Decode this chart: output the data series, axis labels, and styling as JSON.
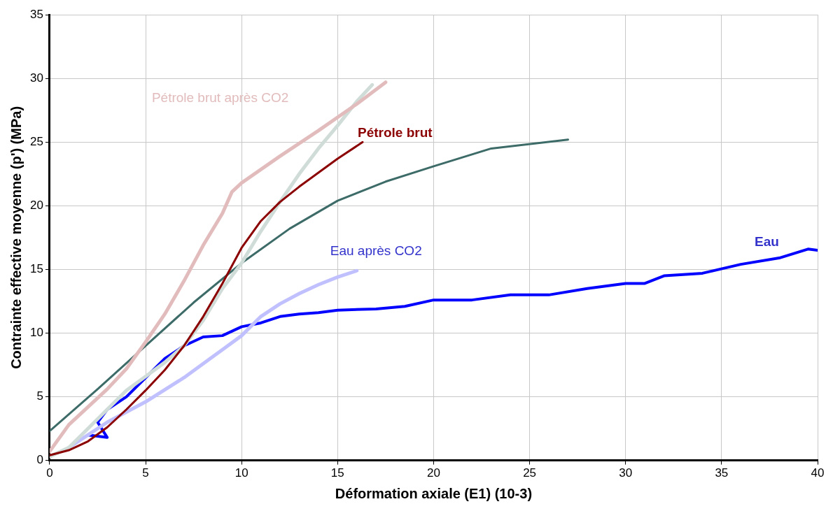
{
  "chart_data": {
    "type": "line",
    "xlabel": "Déformation axiale (E1) (10-3)",
    "ylabel": "Contrainte effective moyenne (p') (MPa)",
    "xlim": [
      0,
      40
    ],
    "xticks": [
      0,
      5,
      10,
      15,
      20,
      25,
      30,
      35,
      40
    ],
    "ylim": [
      0,
      35
    ],
    "yticks": [
      0,
      5,
      10,
      15,
      20,
      25,
      30,
      35
    ],
    "grid": true,
    "legend": false,
    "marker": "none",
    "line_style": "solid",
    "series": [
      {
        "name": "Pétrole brut après CO2",
        "color": "#e2bcbc",
        "x": [
          0,
          1,
          2,
          3,
          4,
          5,
          6,
          7,
          8,
          9,
          9.5,
          10,
          12,
          14,
          16,
          17.5
        ],
        "values": [
          0.7,
          2.8,
          4.2,
          5.6,
          7.2,
          9.3,
          11.5,
          14.1,
          16.9,
          19.4,
          21.1,
          21.8,
          23.9,
          25.9,
          28.0,
          29.7
        ]
      },
      {
        "color": "#cfdcd8",
        "x": [
          0,
          1,
          2,
          3,
          4,
          5,
          6,
          7,
          8,
          9,
          10,
          11,
          12,
          13,
          14,
          15,
          16,
          16.8
        ],
        "values": [
          0.3,
          1.0,
          2.5,
          4.0,
          5.5,
          6.6,
          7.7,
          9.0,
          11.0,
          13.5,
          15.5,
          18.0,
          20.3,
          22.5,
          24.5,
          26.3,
          28.2,
          29.5
        ]
      },
      {
        "name": "Pétrole brut",
        "color": "#8b0000",
        "x": [
          0,
          1,
          2,
          3,
          4,
          5,
          6,
          7,
          8,
          9,
          10,
          11,
          12,
          13,
          14,
          15,
          16.3
        ],
        "values": [
          0.4,
          0.8,
          1.5,
          2.6,
          4.0,
          5.5,
          7.1,
          9.0,
          11.3,
          13.9,
          16.7,
          18.8,
          20.3,
          21.5,
          22.6,
          23.7,
          25.0
        ]
      },
      {
        "color": "#3d6b68",
        "x": [
          0,
          2.5,
          5,
          7.5,
          10,
          12.5,
          15,
          17.5,
          20,
          23,
          27
        ],
        "values": [
          2.3,
          5.6,
          9.0,
          12.4,
          15.5,
          18.2,
          20.4,
          21.9,
          23.1,
          24.5,
          25.2
        ]
      },
      {
        "name": "Eau après CO2",
        "color": "#c0c0ff",
        "x": [
          1,
          2,
          3,
          5,
          7,
          9,
          10,
          11,
          12,
          13,
          14,
          15,
          16
        ],
        "values": [
          1.0,
          2.0,
          3.0,
          4.6,
          6.5,
          8.7,
          9.8,
          11.3,
          12.3,
          13.1,
          13.8,
          14.4,
          14.9
        ]
      },
      {
        "name": "Eau",
        "color": "#0000ff",
        "x": [
          2,
          3,
          2.5,
          3,
          4,
          5,
          6,
          7,
          8,
          9,
          10,
          11,
          12,
          13,
          14,
          15,
          17,
          18.5,
          20,
          22,
          24,
          26,
          28,
          30,
          31,
          32,
          34,
          36,
          38,
          39.5,
          40
        ],
        "values": [
          2.0,
          1.8,
          3.0,
          4.0,
          5.0,
          6.5,
          8.0,
          9.0,
          9.7,
          9.8,
          10.5,
          10.8,
          11.3,
          11.5,
          11.6,
          11.8,
          11.9,
          12.1,
          12.6,
          12.6,
          13.0,
          13.0,
          13.5,
          13.9,
          13.9,
          14.5,
          14.7,
          15.4,
          15.9,
          16.6,
          16.5
        ]
      }
    ]
  }
}
